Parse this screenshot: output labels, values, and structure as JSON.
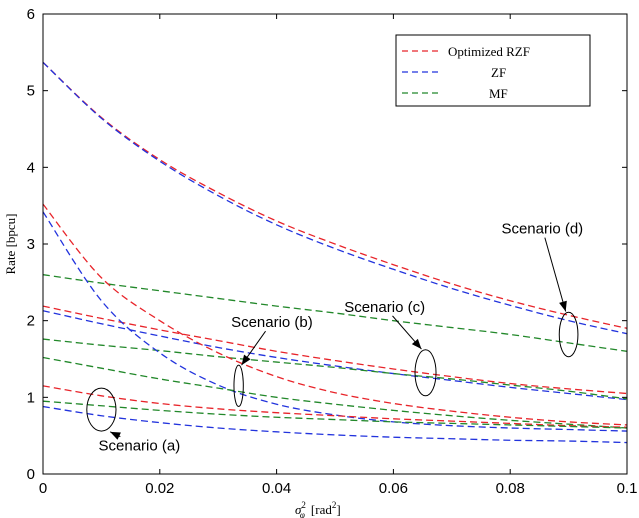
{
  "chart_data": {
    "type": "line",
    "xlabel": "σ²_φ [rad²]",
    "xlabel_parts": {
      "base": "σ",
      "sup": "2",
      "sub": "φ",
      "unit": "[rad",
      "unit_sup": "2",
      "unit_close": "]"
    },
    "ylabel": "Rate [bpcu]",
    "xlim": [
      0,
      0.1
    ],
    "ylim": [
      0,
      6
    ],
    "x_ticks": [
      0,
      0.02,
      0.04,
      0.06,
      0.08,
      0.1
    ],
    "x_tick_labels": [
      "0",
      "0.02",
      "0.04",
      "0.06",
      "0.08",
      "0.1"
    ],
    "y_ticks": [
      0,
      1,
      2,
      3,
      4,
      5,
      6
    ],
    "y_tick_labels": [
      "0",
      "1",
      "2",
      "3",
      "4",
      "5",
      "6"
    ],
    "grid": false,
    "legend_position": "top-right",
    "legend": [
      {
        "label": "Optimized RZF",
        "color": "#e8242a"
      },
      {
        "label": "ZF",
        "color": "#2233dd"
      },
      {
        "label": "MF",
        "color": "#22882a"
      }
    ],
    "x": [
      0,
      0.01,
      0.02,
      0.03,
      0.04,
      0.05,
      0.06,
      0.07,
      0.08,
      0.09,
      0.1
    ],
    "series": [
      {
        "scenario": "(d)",
        "scheme": "Optimized RZF",
        "color": "#e8242a",
        "values": [
          5.37,
          4.65,
          4.1,
          3.67,
          3.3,
          3.0,
          2.73,
          2.48,
          2.26,
          2.07,
          1.9
        ]
      },
      {
        "scenario": "(d)",
        "scheme": "ZF",
        "color": "#2233dd",
        "values": [
          5.37,
          4.64,
          4.08,
          3.63,
          3.25,
          2.94,
          2.67,
          2.42,
          2.2,
          2.0,
          1.83
        ]
      },
      {
        "scenario": "(d)",
        "scheme": "MF",
        "color": "#22882a",
        "values": [
          2.6,
          2.49,
          2.39,
          2.29,
          2.19,
          2.1,
          2.0,
          1.91,
          1.82,
          1.71,
          1.6
        ]
      },
      {
        "scenario": "(c)",
        "scheme": "Optimized RZF",
        "color": "#e8242a",
        "values": [
          2.19,
          2.03,
          1.88,
          1.74,
          1.6,
          1.48,
          1.37,
          1.27,
          1.18,
          1.11,
          1.05
        ]
      },
      {
        "scenario": "(c)",
        "scheme": "ZF",
        "color": "#2233dd",
        "values": [
          2.13,
          1.96,
          1.8,
          1.65,
          1.52,
          1.41,
          1.31,
          1.22,
          1.13,
          1.05,
          0.97
        ]
      },
      {
        "scenario": "(c)",
        "scheme": "MF",
        "color": "#22882a",
        "values": [
          1.76,
          1.68,
          1.61,
          1.53,
          1.46,
          1.39,
          1.31,
          1.24,
          1.16,
          1.08,
          0.98
        ]
      },
      {
        "scenario": "(b)",
        "scheme": "Optimized RZF",
        "color": "#e8242a",
        "values": [
          3.52,
          2.56,
          2.0,
          1.58,
          1.27,
          1.06,
          0.92,
          0.82,
          0.74,
          0.68,
          0.64
        ]
      },
      {
        "scenario": "(b)",
        "scheme": "ZF",
        "color": "#2233dd",
        "values": [
          3.42,
          2.26,
          1.58,
          1.16,
          0.91,
          0.77,
          0.68,
          0.63,
          0.6,
          0.58,
          0.56
        ]
      },
      {
        "scenario": "(b)",
        "scheme": "MF",
        "color": "#22882a",
        "values": [
          1.52,
          1.38,
          1.24,
          1.12,
          1.0,
          0.91,
          0.83,
          0.76,
          0.7,
          0.65,
          0.6
        ]
      },
      {
        "scenario": "(a)",
        "scheme": "Optimized RZF",
        "color": "#e8242a",
        "values": [
          1.15,
          1.02,
          0.92,
          0.85,
          0.8,
          0.76,
          0.72,
          0.69,
          0.66,
          0.63,
          0.61
        ]
      },
      {
        "scenario": "(a)",
        "scheme": "ZF",
        "color": "#2233dd",
        "values": [
          0.88,
          0.76,
          0.67,
          0.6,
          0.55,
          0.51,
          0.48,
          0.46,
          0.44,
          0.43,
          0.41
        ]
      },
      {
        "scenario": "(a)",
        "scheme": "MF",
        "color": "#22882a",
        "values": [
          0.95,
          0.89,
          0.83,
          0.78,
          0.74,
          0.71,
          0.68,
          0.66,
          0.64,
          0.62,
          0.6
        ]
      }
    ],
    "annotations": [
      {
        "text": "Scenario (a)",
        "ellipse_center": [
          0.01,
          0.84
        ],
        "ellipse_rx": 0.0025,
        "ellipse_ry": 0.28,
        "label_at": [
          0.0165,
          0.37
        ],
        "arrow_tip": [
          0.0115,
          0.55
        ]
      },
      {
        "text": "Scenario (b)",
        "ellipse_center": [
          0.0335,
          1.15
        ],
        "ellipse_rx": 0.0008,
        "ellipse_ry": 0.27,
        "label_at": [
          0.0392,
          1.98
        ],
        "arrow_tip": [
          0.034,
          1.42
        ]
      },
      {
        "text": "Scenario (c)",
        "ellipse_center": [
          0.0655,
          1.32
        ],
        "ellipse_rx": 0.0018,
        "ellipse_ry": 0.3,
        "label_at": [
          0.0585,
          2.18
        ],
        "arrow_tip": [
          0.0648,
          1.63
        ]
      },
      {
        "text": "Scenario (d)",
        "ellipse_center": [
          0.09,
          1.82
        ],
        "ellipse_rx": 0.0016,
        "ellipse_ry": 0.29,
        "label_at": [
          0.0855,
          3.2
        ],
        "arrow_tip": [
          0.0895,
          2.12
        ]
      }
    ]
  }
}
